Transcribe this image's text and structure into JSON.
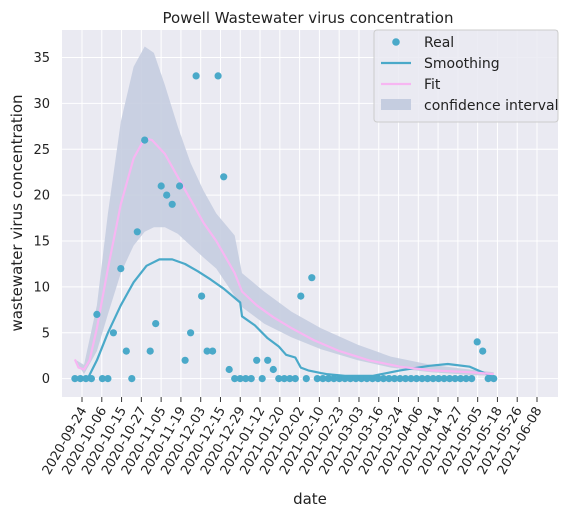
{
  "chart_data": {
    "type": "line",
    "title": "Powell Wastewater virus concentration",
    "xlabel": "date",
    "ylabel": "wastewater virus concentration",
    "ylim": [
      -2,
      38
    ],
    "yticks": [
      0,
      5,
      10,
      15,
      20,
      25,
      30,
      35
    ],
    "xlim": [
      "2020-09-17",
      "2021-06-14"
    ],
    "x_tick_labels": [
      "2020-09-24",
      "2020-10-06",
      "2020-10-15",
      "2020-10-27",
      "2020-11-05",
      "2020-11-19",
      "2020-12-03",
      "2020-12-15",
      "2020-12-29",
      "2021-01-12",
      "2021-01-20",
      "2021-02-02",
      "2021-02-10",
      "2021-02-23",
      "2021-03-03",
      "2021-03-16",
      "2021-03-24",
      "2021-04-06",
      "2021-04-14",
      "2021-04-27",
      "2021-05-05",
      "2021-05-18",
      "2021-05-26",
      "2021-06-08"
    ],
    "grid": true,
    "legend_position": "top-right",
    "colors": {
      "background": "#eaeaf2",
      "grid": "#ffffff",
      "real": "#4aa9c9",
      "smoothing": "#4aa9c9",
      "fit": "#f7b6f2",
      "confidence": "#c5cde0"
    },
    "series": [
      {
        "name": "Real",
        "kind": "scatter",
        "points": [
          [
            "2020-09-24",
            0
          ],
          [
            "2020-09-27",
            0
          ],
          [
            "2020-09-30",
            0
          ],
          [
            "2020-10-03",
            0
          ],
          [
            "2020-10-06",
            7
          ],
          [
            "2020-10-09",
            0
          ],
          [
            "2020-10-12",
            0
          ],
          [
            "2020-10-15",
            5
          ],
          [
            "2020-10-19",
            12
          ],
          [
            "2020-10-22",
            3
          ],
          [
            "2020-10-25",
            0
          ],
          [
            "2020-10-28",
            16
          ],
          [
            "2020-11-01",
            26
          ],
          [
            "2020-11-04",
            3
          ],
          [
            "2020-11-07",
            6
          ],
          [
            "2020-11-10",
            21
          ],
          [
            "2020-11-13",
            20
          ],
          [
            "2020-11-16",
            19
          ],
          [
            "2020-11-20",
            21
          ],
          [
            "2020-11-23",
            2
          ],
          [
            "2020-11-26",
            5
          ],
          [
            "2020-11-29",
            33
          ],
          [
            "2020-12-02",
            9
          ],
          [
            "2020-12-05",
            3
          ],
          [
            "2020-12-08",
            3
          ],
          [
            "2020-12-11",
            33
          ],
          [
            "2020-12-14",
            22
          ],
          [
            "2020-12-17",
            1
          ],
          [
            "2020-12-20",
            0
          ],
          [
            "2020-12-23",
            0
          ],
          [
            "2020-12-26",
            0
          ],
          [
            "2020-12-29",
            0
          ],
          [
            "2021-01-01",
            2
          ],
          [
            "2021-01-04",
            0
          ],
          [
            "2021-01-07",
            2
          ],
          [
            "2021-01-10",
            1
          ],
          [
            "2021-01-13",
            0
          ],
          [
            "2021-01-16",
            0
          ],
          [
            "2021-01-19",
            0
          ],
          [
            "2021-01-22",
            0
          ],
          [
            "2021-01-25",
            9
          ],
          [
            "2021-01-28",
            0
          ],
          [
            "2021-01-31",
            11
          ],
          [
            "2021-02-03",
            0
          ],
          [
            "2021-02-06",
            0
          ],
          [
            "2021-02-09",
            0
          ],
          [
            "2021-02-12",
            0
          ],
          [
            "2021-02-15",
            0
          ],
          [
            "2021-02-18",
            0
          ],
          [
            "2021-02-21",
            0
          ],
          [
            "2021-02-24",
            0
          ],
          [
            "2021-02-27",
            0
          ],
          [
            "2021-03-02",
            0
          ],
          [
            "2021-03-05",
            0
          ],
          [
            "2021-03-08",
            0
          ],
          [
            "2021-03-11",
            0
          ],
          [
            "2021-03-14",
            0
          ],
          [
            "2021-03-17",
            0
          ],
          [
            "2021-03-20",
            0
          ],
          [
            "2021-03-23",
            0
          ],
          [
            "2021-03-26",
            0
          ],
          [
            "2021-03-29",
            0
          ],
          [
            "2021-04-01",
            0
          ],
          [
            "2021-04-04",
            0
          ],
          [
            "2021-04-07",
            0
          ],
          [
            "2021-04-10",
            0
          ],
          [
            "2021-04-13",
            0
          ],
          [
            "2021-04-16",
            0
          ],
          [
            "2021-04-19",
            0
          ],
          [
            "2021-04-22",
            0
          ],
          [
            "2021-04-25",
            0
          ],
          [
            "2021-04-28",
            0
          ],
          [
            "2021-05-01",
            4
          ],
          [
            "2021-05-04",
            3
          ],
          [
            "2021-05-07",
            0
          ],
          [
            "2021-05-10",
            0
          ]
        ]
      },
      {
        "name": "Smoothing",
        "kind": "line",
        "points": [
          [
            "2020-09-24",
            0
          ],
          [
            "2020-10-01",
            0
          ],
          [
            "2020-10-06",
            2
          ],
          [
            "2020-10-12",
            5
          ],
          [
            "2020-10-19",
            8
          ],
          [
            "2020-10-26",
            10.5
          ],
          [
            "2020-11-02",
            12.3
          ],
          [
            "2020-11-09",
            13.0
          ],
          [
            "2020-11-16",
            13.0
          ],
          [
            "2020-11-23",
            12.5
          ],
          [
            "2020-11-30",
            11.7
          ],
          [
            "2020-12-07",
            10.8
          ],
          [
            "2020-12-14",
            9.8
          ],
          [
            "2020-12-20",
            8.8
          ],
          [
            "2020-12-23",
            8.3
          ],
          [
            "2020-12-24",
            6.8
          ],
          [
            "2020-12-31",
            5.8
          ],
          [
            "2021-01-07",
            4.4
          ],
          [
            "2021-01-13",
            3.5
          ],
          [
            "2021-01-17",
            2.6
          ],
          [
            "2021-01-22",
            2.3
          ],
          [
            "2021-01-25",
            1.2
          ],
          [
            "2021-01-29",
            0.9
          ],
          [
            "2021-02-05",
            0.6
          ],
          [
            "2021-02-08",
            0.5
          ],
          [
            "2021-02-18",
            0.3
          ],
          [
            "2021-03-05",
            0.3
          ],
          [
            "2021-03-20",
            0.9
          ],
          [
            "2021-04-05",
            1.4
          ],
          [
            "2021-04-15",
            1.6
          ],
          [
            "2021-04-27",
            1.3
          ],
          [
            "2021-05-05",
            0.6
          ],
          [
            "2021-05-10",
            0.2
          ]
        ]
      },
      {
        "name": "Fit",
        "kind": "line",
        "points": [
          [
            "2020-09-24",
            2.1
          ],
          [
            "2020-09-26",
            1.2
          ],
          [
            "2020-09-29",
            1.0
          ],
          [
            "2020-10-02",
            2.0
          ],
          [
            "2020-10-06",
            5.5
          ],
          [
            "2020-10-12",
            12
          ],
          [
            "2020-10-19",
            19
          ],
          [
            "2020-10-26",
            24
          ],
          [
            "2020-11-01",
            26.2
          ],
          [
            "2020-11-05",
            26.0
          ],
          [
            "2020-11-12",
            24.5
          ],
          [
            "2020-11-19",
            22
          ],
          [
            "2020-11-26",
            19.5
          ],
          [
            "2020-12-03",
            17
          ],
          [
            "2020-12-10",
            15.0
          ],
          [
            "2020-12-20",
            11.5
          ],
          [
            "2020-12-24",
            9.5
          ],
          [
            "2021-01-01",
            8.0
          ],
          [
            "2021-01-10",
            6.7
          ],
          [
            "2021-01-20",
            5.5
          ],
          [
            "2021-02-01",
            4.2
          ],
          [
            "2021-02-15",
            3.0
          ],
          [
            "2021-03-03",
            2.0
          ],
          [
            "2021-03-20",
            1.3
          ],
          [
            "2021-04-06",
            0.9
          ],
          [
            "2021-04-27",
            0.7
          ],
          [
            "2021-05-10",
            0.5
          ]
        ]
      },
      {
        "name": "confidence interval",
        "kind": "band",
        "upper": [
          [
            "2020-09-24",
            2.1
          ],
          [
            "2020-09-29",
            1.5
          ],
          [
            "2020-10-06",
            8
          ],
          [
            "2020-10-12",
            18
          ],
          [
            "2020-10-19",
            28
          ],
          [
            "2020-10-26",
            34
          ],
          [
            "2020-11-01",
            36.2
          ],
          [
            "2020-11-06",
            35.5
          ],
          [
            "2020-11-12",
            32
          ],
          [
            "2020-11-19",
            27.5
          ],
          [
            "2020-11-26",
            23.5
          ],
          [
            "2020-12-03",
            20.5
          ],
          [
            "2020-12-10",
            18.0
          ],
          [
            "2020-12-20",
            15.6
          ],
          [
            "2020-12-24",
            11.5
          ],
          [
            "2021-01-05",
            9.5
          ],
          [
            "2021-01-20",
            7.3
          ],
          [
            "2021-02-05",
            5.5
          ],
          [
            "2021-02-25",
            3.7
          ],
          [
            "2021-03-15",
            2.4
          ],
          [
            "2021-04-06",
            1.5
          ],
          [
            "2021-04-27",
            1.0
          ],
          [
            "2021-05-10",
            0.7
          ]
        ],
        "lower": [
          [
            "2020-09-24",
            2.1
          ],
          [
            "2020-09-29",
            0.5
          ],
          [
            "2020-10-06",
            3
          ],
          [
            "2020-10-12",
            7
          ],
          [
            "2020-10-19",
            11.5
          ],
          [
            "2020-10-26",
            14.5
          ],
          [
            "2020-11-01",
            16.0
          ],
          [
            "2020-11-06",
            16.5
          ],
          [
            "2020-11-12",
            16.5
          ],
          [
            "2020-11-19",
            15.8
          ],
          [
            "2020-11-26",
            14.5
          ],
          [
            "2020-12-03",
            13.2
          ],
          [
            "2020-12-10",
            12
          ],
          [
            "2020-12-20",
            9
          ],
          [
            "2020-12-24",
            7.8
          ],
          [
            "2021-01-05",
            6.0
          ],
          [
            "2021-01-20",
            4.5
          ],
          [
            "2021-02-05",
            3.2
          ],
          [
            "2021-02-25",
            2.0
          ],
          [
            "2021-03-15",
            1.2
          ],
          [
            "2021-04-06",
            0.7
          ],
          [
            "2021-04-27",
            0.4
          ],
          [
            "2021-05-10",
            0.3
          ]
        ]
      }
    ]
  }
}
